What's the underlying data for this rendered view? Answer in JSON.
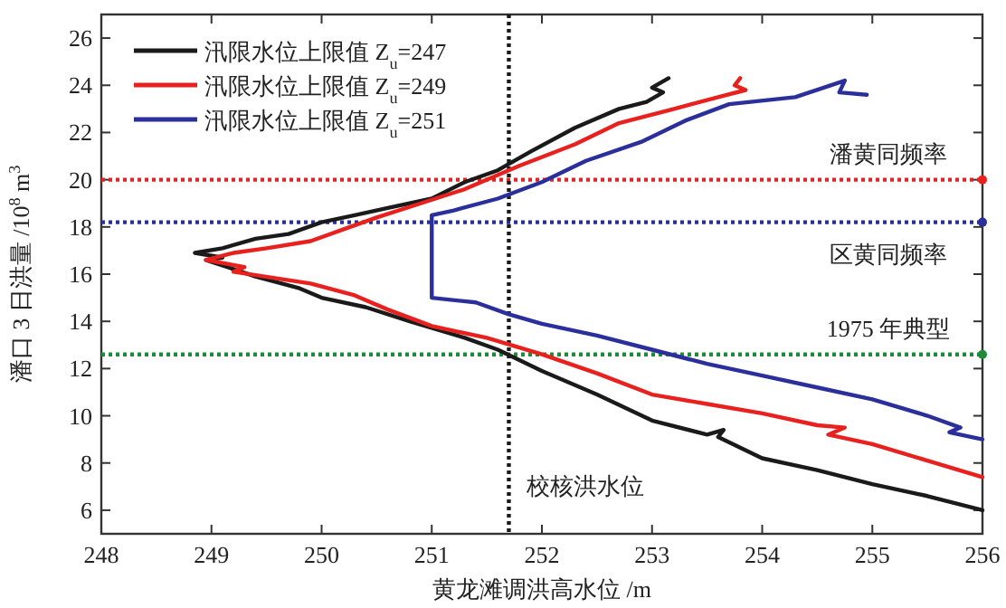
{
  "chart_data": {
    "type": "line",
    "xlabel": "黄龙滩调洪高水位 /m",
    "ylabel": "潘口 3 日洪量 /10$^{8}$ m$^{3}$",
    "xlim": [
      248,
      256
    ],
    "ylim": [
      5,
      27
    ],
    "xticks": [
      248,
      249,
      250,
      251,
      252,
      253,
      254,
      255,
      256
    ],
    "yticks": [
      6,
      8,
      10,
      12,
      14,
      16,
      18,
      20,
      22,
      24,
      26
    ],
    "grid": false,
    "legend": "top left",
    "line_style": "solid",
    "marker": "none",
    "series": [
      {
        "name": "汛限水位上限值 Z$_{u}$=247",
        "color": "#1a1a1a",
        "x": [
          253.15,
          253.0,
          253.1,
          252.95,
          252.7,
          252.3,
          251.9,
          251.6,
          251.3,
          251.0,
          250.6,
          250.3,
          250.0,
          249.7,
          249.4,
          249.1,
          248.85,
          249.1,
          248.95,
          249.4,
          249.8,
          250.0,
          250.4,
          250.8,
          251.3,
          251.6,
          252.0,
          252.5,
          253.0,
          253.5,
          253.65,
          253.6,
          254.0,
          254.5,
          255.0,
          255.5,
          256.0
        ],
        "values": [
          24.3,
          23.9,
          23.7,
          23.3,
          23.0,
          22.2,
          21.2,
          20.4,
          19.9,
          19.2,
          18.8,
          18.5,
          18.2,
          17.7,
          17.5,
          17.1,
          16.9,
          16.7,
          16.6,
          15.9,
          15.4,
          15.0,
          14.6,
          14.0,
          13.3,
          12.8,
          11.9,
          10.9,
          9.8,
          9.2,
          9.4,
          9.1,
          8.2,
          7.7,
          7.1,
          6.6,
          6.0
        ]
      },
      {
        "name": "汛限水位上限值 Z$_{u}$=249",
        "color": "#e8201e",
        "x": [
          253.8,
          253.75,
          253.85,
          253.6,
          253.2,
          252.7,
          252.3,
          251.8,
          251.3,
          250.9,
          250.5,
          250.2,
          249.9,
          249.5,
          249.2,
          248.95,
          249.3,
          249.2,
          249.9,
          250.3,
          250.6,
          251.0,
          251.5,
          252.0,
          252.5,
          253.0,
          253.5,
          254.0,
          254.5,
          254.75,
          254.6,
          255.0,
          255.5,
          256.0
        ],
        "values": [
          24.3,
          24.0,
          23.8,
          23.5,
          23.0,
          22.4,
          21.5,
          20.6,
          19.6,
          19.0,
          18.4,
          17.9,
          17.4,
          17.1,
          16.9,
          16.6,
          16.3,
          16.1,
          15.6,
          15.1,
          14.5,
          13.8,
          13.3,
          12.6,
          11.8,
          10.9,
          10.5,
          10.1,
          9.6,
          9.5,
          9.2,
          8.8,
          8.1,
          7.4
        ]
      },
      {
        "name": "汛限水位上限值 Z$_{u}$=251",
        "color": "#2b2f9c",
        "x": [
          254.95,
          254.7,
          254.75,
          254.3,
          253.7,
          253.3,
          252.9,
          252.4,
          252.0,
          251.6,
          251.2,
          251.0,
          251.0,
          251.0,
          251.4,
          251.7,
          252.0,
          252.5,
          253.0,
          253.5,
          254.0,
          254.5,
          255.0,
          255.5,
          255.8,
          255.7,
          256.0
        ],
        "values": [
          23.6,
          23.7,
          24.2,
          23.5,
          23.2,
          22.5,
          21.6,
          20.8,
          19.9,
          19.2,
          18.7,
          18.5,
          16.5,
          15.0,
          14.8,
          14.3,
          13.9,
          13.4,
          12.8,
          12.2,
          11.7,
          11.2,
          10.7,
          10.0,
          9.5,
          9.3,
          9.0
        ]
      }
    ],
    "ref_lines": [
      {
        "axis": "y",
        "value": 20,
        "label": "潘黄同频率",
        "color": "#e8201e",
        "line_style": "dotted"
      },
      {
        "axis": "y",
        "value": 18.2,
        "label": "区黄同频率",
        "color": "#2b2f9c",
        "line_style": "dotted"
      },
      {
        "axis": "y",
        "value": 12.6,
        "label": "1975 年典型",
        "color": "#1e8a3a",
        "line_style": "dotted"
      },
      {
        "axis": "x",
        "value": 251.7,
        "label": "校核洪水位",
        "color": "#1a1a1a",
        "line_style": "dotted"
      }
    ]
  }
}
